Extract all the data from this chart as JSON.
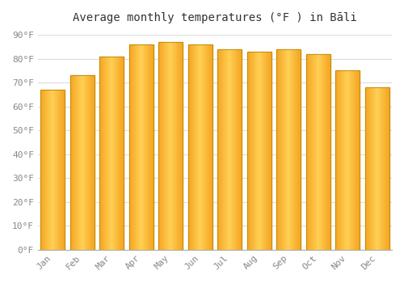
{
  "title": "Average monthly temperatures (°F ) in Bāli",
  "months": [
    "Jan",
    "Feb",
    "Mar",
    "Apr",
    "May",
    "Jun",
    "Jul",
    "Aug",
    "Sep",
    "Oct",
    "Nov",
    "Dec"
  ],
  "values": [
    67,
    73,
    81,
    86,
    87,
    86,
    84,
    83,
    84,
    82,
    75,
    68
  ],
  "bar_color_outer": "#F5A623",
  "bar_color_inner": "#FFD055",
  "bar_edge_color": "#B8860B",
  "background_color": "#ffffff",
  "grid_color": "#dddddd",
  "yticks": [
    0,
    10,
    20,
    30,
    40,
    50,
    60,
    70,
    80,
    90
  ],
  "ylim": [
    0,
    93
  ],
  "title_fontsize": 10,
  "tick_fontsize": 8,
  "font_family": "monospace"
}
